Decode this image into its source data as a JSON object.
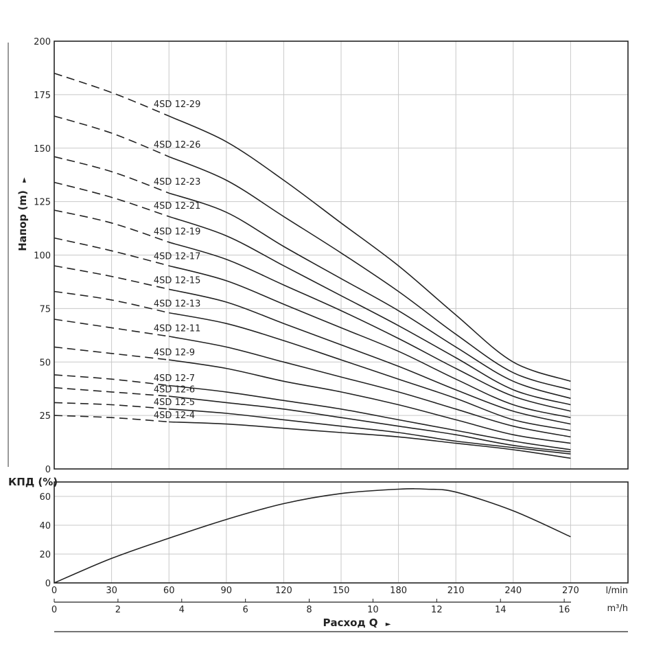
{
  "chart_data": [
    {
      "type": "line",
      "ylabel": "Напор (m)",
      "xlim": [
        0,
        300
      ],
      "ylim": [
        0,
        200
      ],
      "y_ticks": [
        0,
        25,
        50,
        75,
        100,
        125,
        150,
        175,
        200
      ],
      "grid": true,
      "x": [
        0,
        30,
        60,
        90,
        120,
        150,
        180,
        210,
        240,
        270
      ],
      "dashed_until_x": 60,
      "series": [
        {
          "name": "4SD 12-29",
          "values": [
            185,
            176,
            165,
            153,
            135,
            115,
            95,
            72,
            50,
            41
          ]
        },
        {
          "name": "4SD 12-26",
          "values": [
            165,
            157,
            146,
            135,
            118,
            101,
            83,
            63,
            45,
            37
          ]
        },
        {
          "name": "4SD 12-23",
          "values": [
            146,
            139,
            129,
            120,
            104,
            89,
            74,
            57,
            41,
            33
          ]
        },
        {
          "name": "4SD 12-21",
          "values": [
            134,
            127,
            118,
            109,
            95,
            81,
            67,
            52,
            37,
            30
          ]
        },
        {
          "name": "4SD 12-19",
          "values": [
            121,
            115,
            106,
            98,
            86,
            74,
            61,
            47,
            34,
            27
          ]
        },
        {
          "name": "4SD 12-17",
          "values": [
            108,
            102,
            95,
            88,
            77,
            66,
            55,
            42,
            30,
            24
          ]
        },
        {
          "name": "4SD 12-15",
          "values": [
            95,
            90,
            84,
            78,
            68,
            58,
            48,
            37,
            27,
            21
          ]
        },
        {
          "name": "4SD 12-13",
          "values": [
            83,
            79,
            73,
            68,
            60,
            51,
            42,
            33,
            23,
            18
          ]
        },
        {
          "name": "4SD 12-11",
          "values": [
            70,
            66,
            62,
            57,
            50,
            43,
            36,
            28,
            20,
            15
          ]
        },
        {
          "name": "4SD 12-9",
          "values": [
            57,
            54,
            51,
            47,
            41,
            36,
            30,
            23,
            16,
            12
          ]
        },
        {
          "name": "4SD 12-7",
          "values": [
            44,
            42,
            39,
            36,
            32,
            28,
            23,
            18,
            13,
            9
          ]
        },
        {
          "name": "4SD 12-6",
          "values": [
            38,
            36,
            34,
            31,
            28,
            24,
            20,
            16,
            11,
            8
          ]
        },
        {
          "name": "4SD 12-5",
          "values": [
            31,
            30,
            28,
            26,
            23,
            20,
            17,
            13,
            10,
            7
          ]
        },
        {
          "name": "4SD 12-4",
          "values": [
            25,
            24,
            22,
            21,
            19,
            17,
            15,
            12,
            9,
            5
          ]
        }
      ]
    },
    {
      "type": "line",
      "ylabel": "КПД (%)",
      "xlim": [
        0,
        300
      ],
      "ylim": [
        0,
        70
      ],
      "y_ticks": [
        0,
        20,
        40,
        60
      ],
      "grid": true,
      "series": [
        {
          "x": [
            0,
            30,
            60,
            90,
            120,
            150,
            180,
            195,
            210,
            240,
            270
          ],
          "values": [
            0,
            17,
            31,
            44,
            55,
            62,
            65,
            65,
            63,
            50,
            32
          ]
        }
      ]
    }
  ],
  "x_axis": {
    "lmin_unit": "l/min",
    "lmin_ticks": [
      "0",
      "30",
      "60",
      "90",
      "120",
      "150",
      "180",
      "210",
      "240",
      "270"
    ],
    "m3h_unit": "m³/h",
    "m3h_ticks": [
      "0",
      "2",
      "4",
      "6",
      "8",
      "10",
      "12",
      "14",
      "16"
    ],
    "title": "Расход Q",
    "title_arrow": "►"
  },
  "head_axis_arrow": "►"
}
